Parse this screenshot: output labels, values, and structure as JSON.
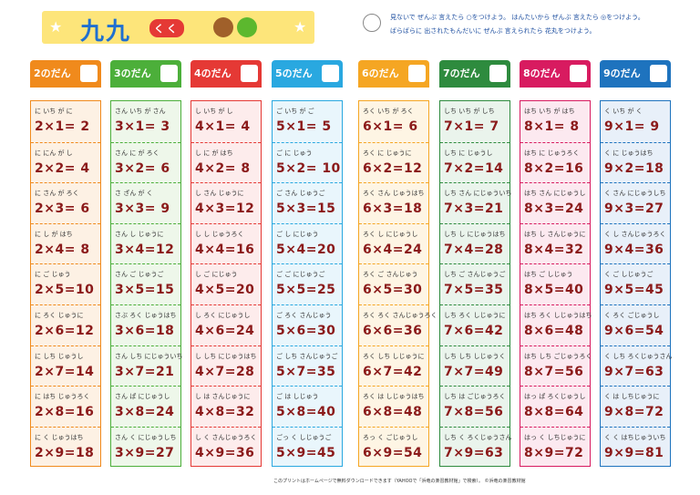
{
  "header": {
    "title": "九九",
    "badge": "くく",
    "instructions": [
      "見ないで ぜんぶ 言えたら ○をつけよう。 はんたいから ぜんぶ 言えたら ◎をつけよう。",
      "ばらばらに 出されたもんだいに ぜんぶ 言えられたら 花丸をつけよう。"
    ]
  },
  "columns": [
    {
      "label": "2のだん",
      "color": "#f08a1c",
      "bg": "#fdf1e4",
      "rows": [
        [
          "に いち が に",
          "2×1= 2"
        ],
        [
          "に にん が し",
          "2×2= 4"
        ],
        [
          "に さん が ろく",
          "2×3= 6"
        ],
        [
          "に し が はち",
          "2×4= 8"
        ],
        [
          "に ご じゅう",
          "2×5=10"
        ],
        [
          "に ろく じゅうに",
          "2×6=12"
        ],
        [
          "に しち じゅうし",
          "2×7=14"
        ],
        [
          "に はち じゅうろく",
          "2×8=16"
        ],
        [
          "に く じゅうはち",
          "2×9=18"
        ]
      ]
    },
    {
      "label": "3のだん",
      "color": "#4caf3a",
      "bg": "#eef7ea",
      "rows": [
        [
          "さん いち が さん",
          "3×1= 3"
        ],
        [
          "さん に が ろく",
          "3×2= 6"
        ],
        [
          "さ ざん が く",
          "3×3= 9"
        ],
        [
          "さん し じゅうに",
          "3×4=12"
        ],
        [
          "さん ご じゅうご",
          "3×5=15"
        ],
        [
          "さぶ ろく じゅうはち",
          "3×6=18"
        ],
        [
          "さん しち にじゅういち",
          "3×7=21"
        ],
        [
          "さん ぱ にじゅうし",
          "3×8=24"
        ],
        [
          "さん く にじゅうしち",
          "3×9=27"
        ]
      ]
    },
    {
      "label": "4のだん",
      "color": "#e53935",
      "bg": "#fdecec",
      "rows": [
        [
          "し いち が し",
          "4×1= 4"
        ],
        [
          "し に が はち",
          "4×2= 8"
        ],
        [
          "し さん じゅうに",
          "4×3=12"
        ],
        [
          "し し じゅうろく",
          "4×4=16"
        ],
        [
          "し ご にじゅう",
          "4×5=20"
        ],
        [
          "し ろく にじゅうし",
          "4×6=24"
        ],
        [
          "し しち にじゅうはち",
          "4×7=28"
        ],
        [
          "し は さんじゅうに",
          "4×8=32"
        ],
        [
          "し く さんじゅうろく",
          "4×9=36"
        ]
      ]
    },
    {
      "label": "5のだん",
      "color": "#29a8e0",
      "bg": "#e9f6fc",
      "rows": [
        [
          "ご いち が ご",
          "5×1= 5"
        ],
        [
          "ご に じゅう",
          "5×2= 10"
        ],
        [
          "ご さん じゅうご",
          "5×3=15"
        ],
        [
          "ご し にじゅう",
          "5×4=20"
        ],
        [
          "ご ご にじゅうご",
          "5×5=25"
        ],
        [
          "ご ろく さんじゅう",
          "5×6=30"
        ],
        [
          "ご しち さんじゅうご",
          "5×7=35"
        ],
        [
          "ご は しじゅう",
          "5×8=40"
        ],
        [
          "ごっ く しじゅうご",
          "5×9=45"
        ]
      ]
    },
    {
      "label": "6のだん",
      "color": "#f5a623",
      "bg": "#fef5e4",
      "rows": [
        [
          "ろく いち が ろく",
          "6×1= 6"
        ],
        [
          "ろく に じゅうに",
          "6×2=12"
        ],
        [
          "ろく さん じゅうはち",
          "6×3=18"
        ],
        [
          "ろく し にじゅうし",
          "6×4=24"
        ],
        [
          "ろく ご さんじゅう",
          "6×5=30"
        ],
        [
          "ろく ろく さんじゅうろく",
          "6×6=36"
        ],
        [
          "ろく しち しじゅうに",
          "6×7=42"
        ],
        [
          "ろく は しじゅうはち",
          "6×8=48"
        ],
        [
          "ろっ く ごじゅうし",
          "6×9=54"
        ]
      ]
    },
    {
      "label": "7のだん",
      "color": "#2e8b3e",
      "bg": "#eaf4ec",
      "rows": [
        [
          "しち いち が しち",
          "7×1= 7"
        ],
        [
          "しち に じゅうし",
          "7×2=14"
        ],
        [
          "しち さん にじゅういち",
          "7×3=21"
        ],
        [
          "しち し にじゅうはち",
          "7×4=28"
        ],
        [
          "しち ご さんじゅうご",
          "7×5=35"
        ],
        [
          "しち ろく しじゅうに",
          "7×6=42"
        ],
        [
          "しち しち しじゅうく",
          "7×7=49"
        ],
        [
          "しち は ごじゅうろく",
          "7×8=56"
        ],
        [
          "しち く ろくじゅうさん",
          "7×9=63"
        ]
      ]
    },
    {
      "label": "8のだん",
      "color": "#d81b60",
      "bg": "#fce9f0",
      "rows": [
        [
          "はち いち が はち",
          "8×1= 8"
        ],
        [
          "はち に じゅうろく",
          "8×2=16"
        ],
        [
          "はち さん にじゅうし",
          "8×3=24"
        ],
        [
          "はち し さんじゅうに",
          "8×4=32"
        ],
        [
          "はち ご しじゅう",
          "8×5=40"
        ],
        [
          "はち ろく しじゅうはち",
          "8×6=48"
        ],
        [
          "はち しち ごじゅうろく",
          "8×7=56"
        ],
        [
          "はっ ぱ ろくじゅうし",
          "8×8=64"
        ],
        [
          "はっ く しちじゅうに",
          "8×9=72"
        ]
      ]
    },
    {
      "label": "9のだん",
      "color": "#1e73be",
      "bg": "#e8f0f9",
      "rows": [
        [
          "く いち が く",
          "9×1= 9"
        ],
        [
          "く に じゅうはち",
          "9×2=18"
        ],
        [
          "く さん にじゅうしち",
          "9×3=27"
        ],
        [
          "く し さんじゅうろく",
          "9×4=36"
        ],
        [
          "く ご しじゅうご",
          "9×5=45"
        ],
        [
          "く ろく ごじゅうし",
          "9×6=54"
        ],
        [
          "く しち ろくじゅうさん",
          "9×7=63"
        ],
        [
          "く は しちじゅうに",
          "9×8=72"
        ],
        [
          "く く はちじゅういち",
          "9×9=81"
        ]
      ]
    }
  ],
  "footer": "このプリントはホームページで無料ダウンロードできます（YAHOOで「浜竜の楽習教材館」で検索）。 ©浜竜の楽習教材館"
}
